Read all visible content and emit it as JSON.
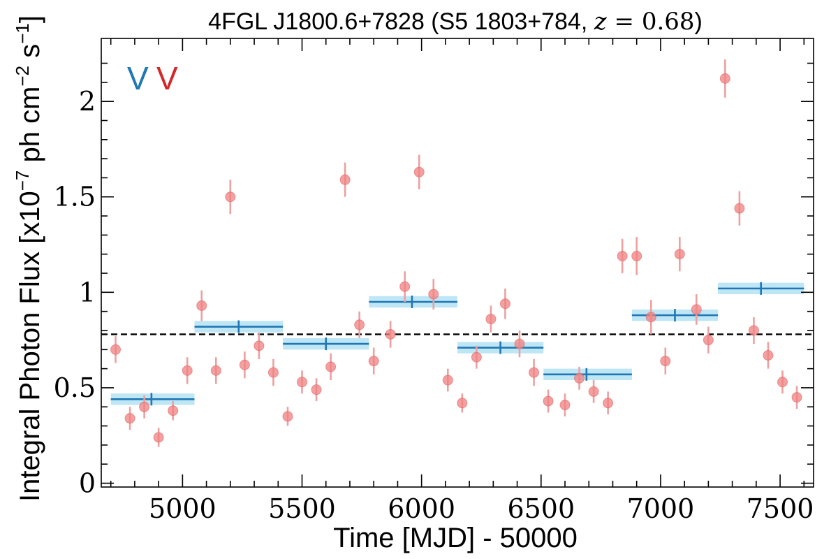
{
  "chart_data": {
    "type": "scatter",
    "title": {
      "main": "4FGL J1800.6+7828 (S5 1803+784, ",
      "z_var": "z",
      "z_eq": " = ",
      "z_val": "0.68",
      "close": ")"
    },
    "xlabel": "Time [MJD] - 50000",
    "ylabel": {
      "prefix": "Integral Photon Flux [x10",
      "exp1": "−7",
      "mid": " ph cm",
      "exp2": "−2",
      "mid2": " s",
      "exp3": "−1",
      "suffix": "]"
    },
    "xlim": [
      4660,
      7640
    ],
    "ylim": [
      -0.02,
      2.33
    ],
    "x_ticks": [
      5000,
      5500,
      6000,
      6500,
      7000,
      7500
    ],
    "x_tick_labels": [
      "5000",
      "5500",
      "6000",
      "6500",
      "7000",
      "7500"
    ],
    "y_ticks": [
      0,
      0.5,
      1,
      1.5,
      2
    ],
    "y_tick_labels": [
      "0",
      "0.5",
      "1",
      "1.5",
      "2"
    ],
    "mean_line": 0.78,
    "markers": [
      {
        "label": "V",
        "color": "#1f77b4"
      },
      {
        "label": "V",
        "color": "#d62728"
      }
    ],
    "colors": {
      "points": "#f08080",
      "points_edge": "#e06060",
      "errorbar": "#eda0a0",
      "bins_line": "#1f77b4",
      "bins_band": "#bfe6f5",
      "mean_line": "#000000"
    },
    "series": [
      {
        "kind": "points",
        "x": [
          4720,
          4780,
          4840,
          4900,
          4960,
          5020,
          5080,
          5140,
          5200,
          5260,
          5320,
          5380,
          5440,
          5500,
          5560,
          5620,
          5680,
          5740,
          5800,
          5870,
          5930,
          5990,
          6050,
          6110,
          6170,
          6230,
          6290,
          6350,
          6410,
          6470,
          6530,
          6600,
          6660,
          6720,
          6780,
          6840,
          6900,
          6960,
          7020,
          7080,
          7150,
          7200,
          7270,
          7330,
          7390,
          7450,
          7510,
          7570
        ],
        "y": [
          0.7,
          0.34,
          0.4,
          0.24,
          0.38,
          0.59,
          0.93,
          0.59,
          1.5,
          0.62,
          0.72,
          0.58,
          0.35,
          0.53,
          0.49,
          0.61,
          1.59,
          0.83,
          0.64,
          0.78,
          1.03,
          1.63,
          0.99,
          0.54,
          0.42,
          0.66,
          0.86,
          0.94,
          0.73,
          0.58,
          0.43,
          0.41,
          0.55,
          0.48,
          0.42,
          1.19,
          1.19,
          0.87,
          0.64,
          1.2,
          0.91,
          0.75,
          2.12,
          1.44,
          0.8,
          0.67,
          0.53,
          0.45
        ],
        "err": [
          0.07,
          0.06,
          0.06,
          0.05,
          0.05,
          0.07,
          0.08,
          0.07,
          0.09,
          0.07,
          0.07,
          0.07,
          0.05,
          0.06,
          0.06,
          0.07,
          0.09,
          0.07,
          0.07,
          0.07,
          0.08,
          0.09,
          0.08,
          0.06,
          0.05,
          0.06,
          0.07,
          0.08,
          0.07,
          0.07,
          0.06,
          0.06,
          0.06,
          0.06,
          0.06,
          0.09,
          0.1,
          0.09,
          0.07,
          0.09,
          0.08,
          0.07,
          0.1,
          0.09,
          0.07,
          0.07,
          0.06,
          0.06
        ]
      },
      {
        "kind": "bins",
        "x_start": [
          4700,
          5050,
          5420,
          5780,
          6150,
          6510,
          6880,
          7240
        ],
        "x_end": [
          5050,
          5420,
          5780,
          6150,
          6510,
          6880,
          7240,
          7600
        ],
        "x_center": [
          4870,
          5235,
          5600,
          5960,
          6330,
          6690,
          7060,
          7420
        ],
        "y": [
          0.44,
          0.82,
          0.73,
          0.95,
          0.71,
          0.57,
          0.88,
          1.02
        ],
        "err": [
          0.03,
          0.03,
          0.03,
          0.03,
          0.03,
          0.03,
          0.03,
          0.03
        ]
      }
    ]
  }
}
